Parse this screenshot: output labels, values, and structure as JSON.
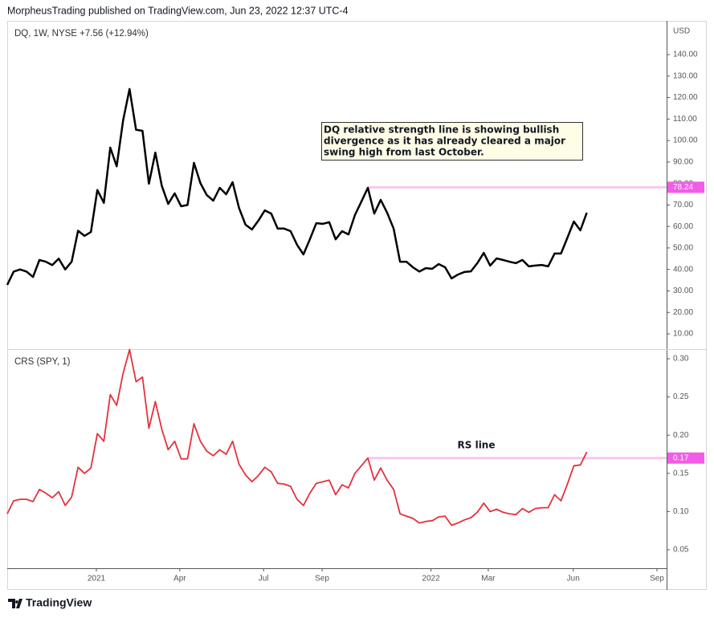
{
  "header": "MorpheusTrading published on TradingView.com, Jun 23, 2022 12:37 UTC-4",
  "footer": "TradingView",
  "chart_data": [
    {
      "type": "line",
      "title": "DQ, 1W, NYSE  +7.56 (+12.94%)",
      "unit": "USD",
      "color": "#000000",
      "values": [
        32.8,
        39,
        40,
        39,
        36.5,
        44.4,
        43.6,
        42,
        45,
        40,
        43.6,
        58,
        55.6,
        57.4,
        77,
        71,
        96.7,
        88,
        109.4,
        124,
        105,
        104.5,
        79.9,
        94.4,
        79,
        70.5,
        75.4,
        69.4,
        70,
        89.6,
        80.2,
        74.6,
        72,
        78,
        75,
        80.6,
        68.6,
        60.8,
        58.6,
        62.7,
        67.5,
        66,
        59,
        59,
        57.8,
        51.5,
        47,
        54,
        61.5,
        61.2,
        62,
        54,
        57.8,
        56.3,
        65.3,
        71.6,
        78,
        66,
        72.4,
        66.4,
        59,
        43.6,
        43.6,
        41,
        39,
        40.6,
        40.3,
        42.5,
        41,
        35.8,
        37.6,
        38.8,
        39.1,
        42.9,
        47.7,
        41.8,
        45.1,
        44.4,
        43.6,
        42.9,
        44.4,
        41.4,
        41.8,
        42.1,
        41.4,
        47.4,
        47.4,
        54.8,
        62.3,
        58.2,
        66.4
      ],
      "xlim": [
        0,
        102.4
      ],
      "ylim": [
        2.9,
        155.7
      ],
      "yticks": [
        {
          "value": 10,
          "label": "10.00"
        },
        {
          "value": 20,
          "label": "20.00"
        },
        {
          "value": 30,
          "label": "30.00"
        },
        {
          "value": 40,
          "label": "40.00"
        },
        {
          "value": 50,
          "label": "50.00"
        },
        {
          "value": 60,
          "label": "60.00"
        },
        {
          "value": 70,
          "label": "70.00"
        },
        {
          "value": 80,
          "label": "80.00"
        },
        {
          "value": 90,
          "label": "90.00"
        },
        {
          "value": 100,
          "label": "100.00"
        },
        {
          "value": 110,
          "label": "110.00"
        },
        {
          "value": 120,
          "label": "120.00"
        },
        {
          "value": 130,
          "label": "130.00"
        },
        {
          "value": 140,
          "label": "140.00"
        }
      ],
      "level": 78.24,
      "level_start": 56,
      "level_color": "#f7c6f0",
      "annotation": [
        "DQ relative strength line is showing bullish",
        "divergence as it has already cleared a major",
        "swing high from last October."
      ]
    },
    {
      "type": "line",
      "title": "CRS (SPY, 1)",
      "color": "#e3323e",
      "values": [
        0.097,
        0.114,
        0.116,
        0.116,
        0.113,
        0.129,
        0.124,
        0.118,
        0.126,
        0.108,
        0.119,
        0.158,
        0.15,
        0.157,
        0.202,
        0.192,
        0.253,
        0.239,
        0.281,
        0.312,
        0.27,
        0.276,
        0.209,
        0.244,
        0.208,
        0.181,
        0.192,
        0.169,
        0.169,
        0.215,
        0.192,
        0.179,
        0.173,
        0.181,
        0.175,
        0.192,
        0.162,
        0.148,
        0.139,
        0.147,
        0.158,
        0.152,
        0.137,
        0.136,
        0.133,
        0.116,
        0.108,
        0.124,
        0.137,
        0.139,
        0.141,
        0.122,
        0.135,
        0.131,
        0.15,
        0.16,
        0.17,
        0.141,
        0.157,
        0.141,
        0.129,
        0.097,
        0.094,
        0.091,
        0.085,
        0.087,
        0.088,
        0.093,
        0.094,
        0.082,
        0.085,
        0.089,
        0.092,
        0.099,
        0.111,
        0.1,
        0.103,
        0.099,
        0.097,
        0.096,
        0.104,
        0.099,
        0.104,
        0.105,
        0.105,
        0.122,
        0.114,
        0.136,
        0.16,
        0.161,
        0.178
      ],
      "xlim": [
        0,
        102.4
      ],
      "ylim": [
        0.0258,
        0.3126
      ],
      "yticks": [
        0.05,
        {
          "value": 0.1,
          "label": "0.10"
        },
        0.15,
        {
          "value": 0.2,
          "label": "0.20"
        },
        0.25,
        {
          "value": 0.3,
          "label": "0.30"
        }
      ],
      "xticks": [
        {
          "value": 13.84,
          "label": "2021"
        },
        {
          "value": 26.8,
          "label": "Apr"
        },
        {
          "value": 39.8,
          "label": "Jul"
        },
        {
          "value": 48.9,
          "label": "Sep"
        },
        {
          "value": 65.8,
          "label": "2022"
        },
        {
          "value": 74.7,
          "label": "Mar"
        },
        {
          "value": 87.9,
          "label": "Jun"
        },
        {
          "value": 100.9,
          "label": "Sep"
        }
      ],
      "level": 0.17,
      "level_start": 56,
      "level_color": "#f7c6f0",
      "annotation": "RS line"
    }
  ]
}
